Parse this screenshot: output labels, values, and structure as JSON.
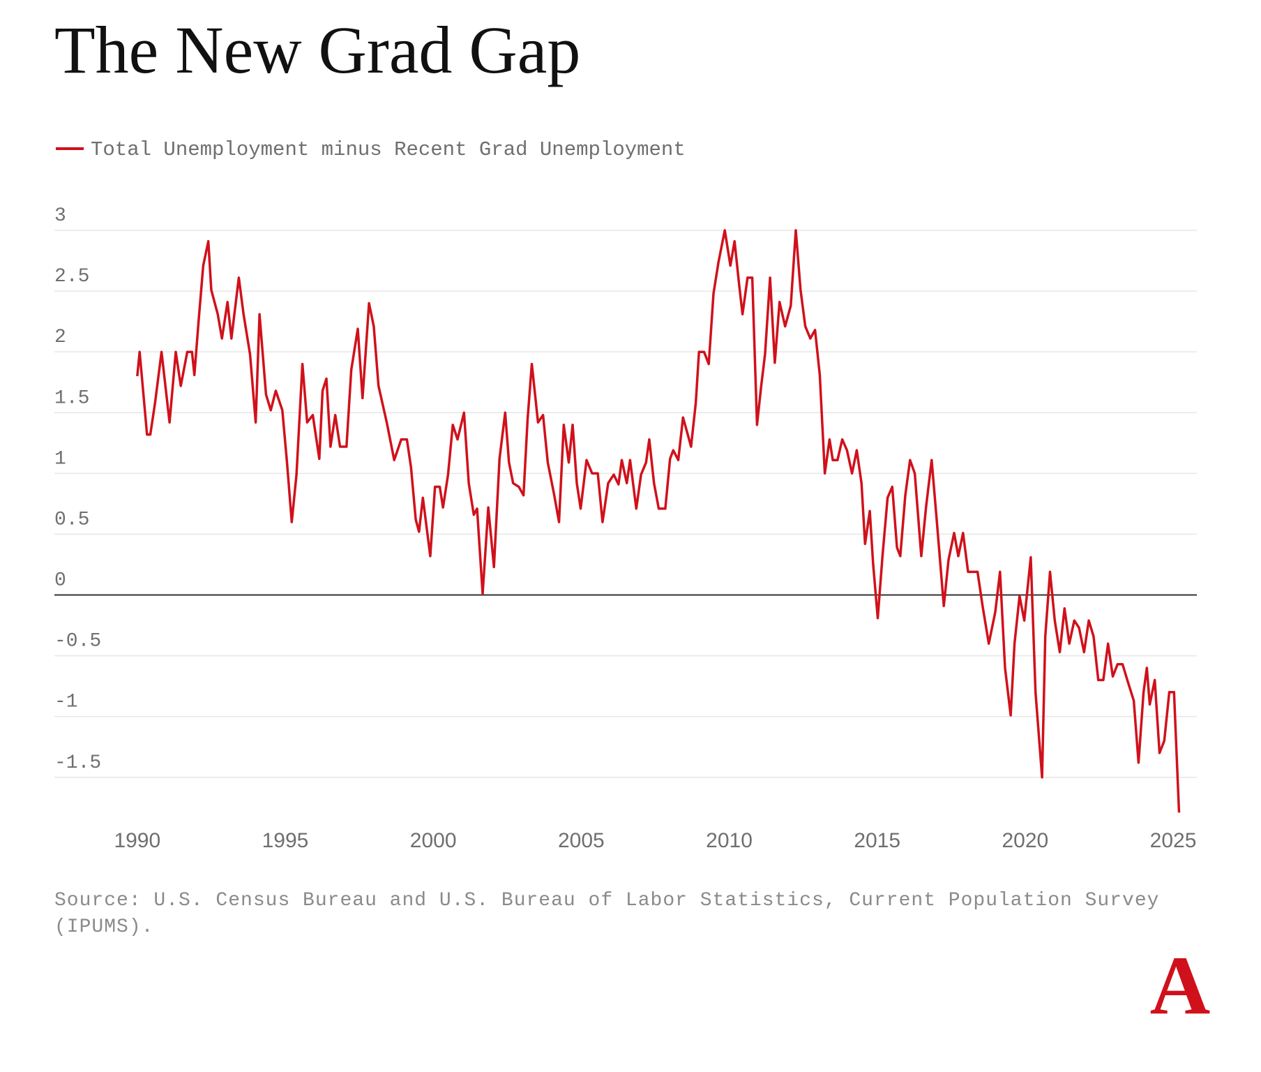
{
  "chart_data": {
    "type": "line",
    "title": "The New Grad Gap",
    "source": "Source: U.S. Census Bureau and U.S. Bureau of Labor Statistics, Current Population Survey (IPUMS).",
    "logo": "A",
    "xlim": [
      1987.2,
      2025.8
    ],
    "xticks": [
      1990,
      1995,
      2000,
      2005,
      2010,
      2015,
      2020,
      2025
    ],
    "ylim": [
      -1.8,
      3
    ],
    "yticks": [
      3,
      2.5,
      2,
      1.5,
      1,
      0.5,
      0,
      -0.5,
      -1,
      -1.5
    ],
    "grid": true,
    "legend": "top-left",
    "series": [
      {
        "name": "Total Unemployment minus Recent Grad Unemployment",
        "color": "#d0111b",
        "x": [
          1990.0,
          1990.08,
          1990.33,
          1990.44,
          1990.6,
          1990.82,
          1991.09,
          1991.3,
          1991.47,
          1991.69,
          1991.85,
          1991.93,
          1992.07,
          1992.23,
          1992.4,
          1992.5,
          1992.72,
          1992.86,
          1993.05,
          1993.18,
          1993.43,
          1993.59,
          1993.81,
          1994.0,
          1994.13,
          1994.35,
          1994.51,
          1994.68,
          1994.9,
          1995.06,
          1995.22,
          1995.38,
          1995.58,
          1995.74,
          1995.93,
          1996.15,
          1996.26,
          1996.39,
          1996.53,
          1996.69,
          1996.85,
          1997.07,
          1997.23,
          1997.45,
          1997.61,
          1997.83,
          1997.99,
          1998.15,
          1998.43,
          1998.68,
          1998.92,
          1999.11,
          1999.25,
          1999.41,
          1999.52,
          1999.65,
          1999.9,
          2000.06,
          2000.22,
          2000.33,
          2000.5,
          2000.66,
          2000.82,
          2001.04,
          2001.2,
          2001.37,
          2001.48,
          2001.67,
          2001.86,
          2002.05,
          2002.24,
          2002.43,
          2002.56,
          2002.7,
          2002.89,
          2003.05,
          2003.19,
          2003.33,
          2003.54,
          2003.71,
          2003.87,
          2004.09,
          2004.25,
          2004.41,
          2004.58,
          2004.71,
          2004.85,
          2004.98,
          2005.18,
          2005.37,
          2005.56,
          2005.72,
          2005.91,
          2006.1,
          2006.26,
          2006.37,
          2006.54,
          2006.65,
          2006.86,
          2007.02,
          2007.19,
          2007.3,
          2007.46,
          2007.62,
          2007.84,
          2008.0,
          2008.11,
          2008.28,
          2008.44,
          2008.6,
          2008.71,
          2008.87,
          2008.98,
          2009.15,
          2009.31,
          2009.47,
          2009.64,
          2009.85,
          2010.04,
          2010.18,
          2010.34,
          2010.45,
          2010.62,
          2010.78,
          2010.94,
          2011.08,
          2011.21,
          2011.38,
          2011.54,
          2011.7,
          2011.89,
          2012.08,
          2012.25,
          2012.41,
          2012.57,
          2012.74,
          2012.9,
          2013.06,
          2013.23,
          2013.39,
          2013.5,
          2013.66,
          2013.82,
          2013.98,
          2014.15,
          2014.31,
          2014.47,
          2014.59,
          2014.75,
          2014.86,
          2015.02,
          2015.18,
          2015.35,
          2015.51,
          2015.67,
          2015.78,
          2015.95,
          2016.11,
          2016.27,
          2016.49,
          2016.65,
          2016.84,
          2017.01,
          2017.25,
          2017.41,
          2017.6,
          2017.74,
          2017.9,
          2018.07,
          2018.23,
          2018.39,
          2018.56,
          2018.77,
          2018.99,
          2019.15,
          2019.32,
          2019.51,
          2019.64,
          2019.81,
          2019.97,
          2020.19,
          2020.35,
          2020.57,
          2020.68,
          2020.84,
          2021.0,
          2021.17,
          2021.33,
          2021.49,
          2021.66,
          2021.82,
          2021.99,
          2022.15,
          2022.31,
          2022.47,
          2022.64,
          2022.8,
          2022.96,
          2023.12,
          2023.29,
          2023.45,
          2023.67,
          2023.83,
          2024.0,
          2024.11,
          2024.21,
          2024.38,
          2024.54,
          2024.7,
          2024.87,
          2025.03,
          2025.2
        ],
        "values": [
          1.8,
          2.0,
          1.32,
          1.32,
          1.58,
          2.0,
          1.42,
          2.0,
          1.72,
          2.0,
          2.0,
          1.81,
          2.25,
          2.71,
          2.91,
          2.51,
          2.31,
          2.11,
          2.41,
          2.11,
          2.61,
          2.31,
          1.98,
          1.42,
          2.31,
          1.65,
          1.52,
          1.68,
          1.52,
          1.09,
          0.6,
          0.99,
          1.9,
          1.42,
          1.48,
          1.12,
          1.68,
          1.78,
          1.22,
          1.48,
          1.22,
          1.22,
          1.85,
          2.19,
          1.62,
          2.4,
          2.21,
          1.72,
          1.42,
          1.11,
          1.28,
          1.28,
          1.05,
          0.62,
          0.52,
          0.8,
          0.32,
          0.89,
          0.89,
          0.72,
          0.99,
          1.4,
          1.28,
          1.5,
          0.92,
          0.66,
          0.71,
          0.01,
          0.72,
          0.23,
          1.12,
          1.5,
          1.09,
          0.92,
          0.89,
          0.82,
          1.45,
          1.9,
          1.42,
          1.48,
          1.09,
          0.82,
          0.6,
          1.4,
          1.09,
          1.4,
          0.92,
          0.71,
          1.11,
          1.0,
          1.0,
          0.6,
          0.92,
          0.99,
          0.91,
          1.11,
          0.92,
          1.11,
          0.71,
          0.99,
          1.09,
          1.28,
          0.92,
          0.71,
          0.71,
          1.12,
          1.19,
          1.11,
          1.46,
          1.32,
          1.22,
          1.58,
          2.0,
          2.0,
          1.9,
          2.48,
          2.74,
          3.0,
          2.71,
          2.91,
          2.54,
          2.31,
          2.61,
          2.61,
          1.4,
          1.72,
          1.98,
          2.61,
          1.91,
          2.41,
          2.21,
          2.38,
          3.0,
          2.51,
          2.21,
          2.11,
          2.18,
          1.81,
          1.0,
          1.28,
          1.11,
          1.11,
          1.28,
          1.19,
          1.0,
          1.19,
          0.92,
          0.42,
          0.69,
          0.26,
          -0.19,
          0.32,
          0.8,
          0.89,
          0.39,
          0.32,
          0.82,
          1.11,
          1.0,
          0.32,
          0.72,
          1.11,
          0.62,
          -0.09,
          0.29,
          0.51,
          0.32,
          0.51,
          0.19,
          0.19,
          0.19,
          -0.09,
          -0.4,
          -0.14,
          0.19,
          -0.6,
          -0.99,
          -0.4,
          -0.01,
          -0.21,
          0.31,
          -0.8,
          -1.5,
          -0.34,
          0.19,
          -0.21,
          -0.47,
          -0.11,
          -0.4,
          -0.21,
          -0.27,
          -0.47,
          -0.21,
          -0.34,
          -0.7,
          -0.7,
          -0.4,
          -0.67,
          -0.57,
          -0.57,
          -0.7,
          -0.87,
          -1.38,
          -0.8,
          -0.6,
          -0.9,
          -0.7,
          -1.3,
          -1.2,
          -0.8,
          -0.8,
          -1.79
        ]
      }
    ]
  }
}
